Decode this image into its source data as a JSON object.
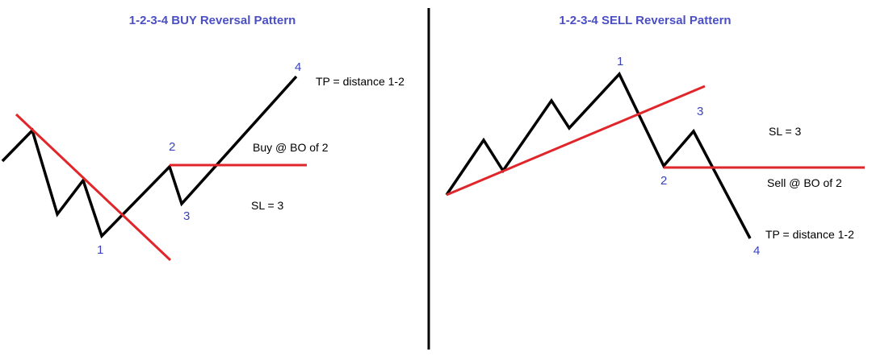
{
  "buy_panel": {
    "title": "1-2-3-4 BUY Reversal Pattern",
    "points": {
      "p1": "1",
      "p2": "2",
      "p3": "3",
      "p4": "4"
    },
    "notes": {
      "tp": "TP = distance 1-2",
      "entry": "Buy @ BO of 2",
      "sl": "SL = 3"
    }
  },
  "sell_panel": {
    "title": "1-2-3-4 SELL Reversal Pattern",
    "points": {
      "p1": "1",
      "p2": "2",
      "p3": "3",
      "p4": "4"
    },
    "notes": {
      "sl": "SL = 3",
      "entry": "Sell @ BO of 2",
      "tp": "TP = distance 1-2"
    }
  },
  "colors": {
    "price": "#000000",
    "trendline": "#e0262b",
    "labels": "#3a43b8",
    "title": "#4a4fc4"
  }
}
